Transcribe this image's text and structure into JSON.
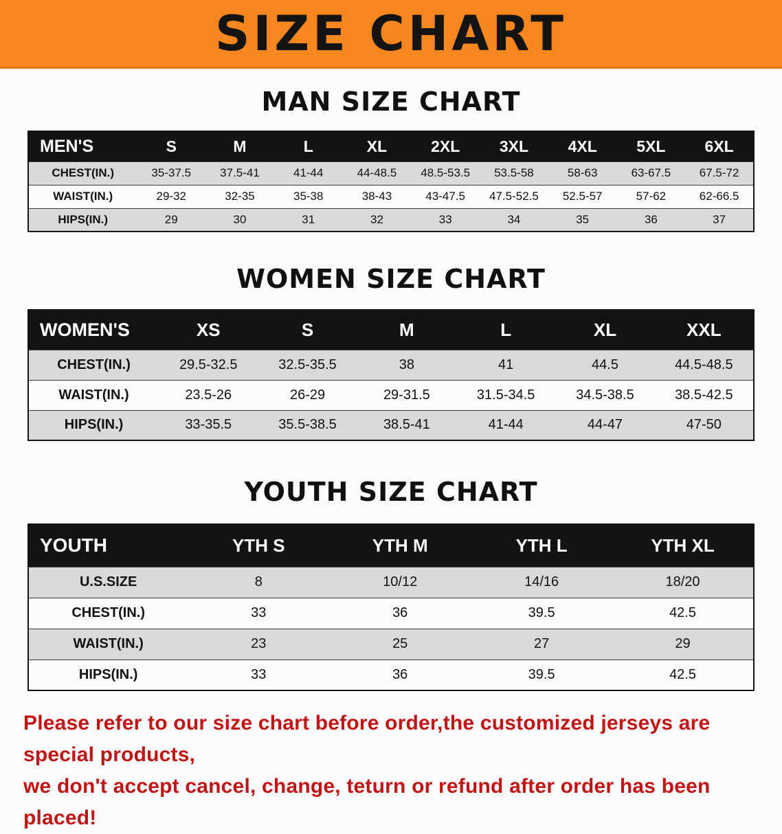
{
  "banner": {
    "title": "SIZE CHART"
  },
  "sections": [
    {
      "heading": "MAN SIZE CHART",
      "table": {
        "header": [
          "MEN'S",
          "S",
          "M",
          "L",
          "XL",
          "2XL",
          "3XL",
          "4XL",
          "5XL",
          "6XL"
        ],
        "rows": [
          {
            "label": "CHEST(IN.)",
            "values": [
              "35-37.5",
              "37.5-41",
              "41-44",
              "44-48.5",
              "48.5-53.5",
              "53.5-58",
              "58-63",
              "63-67.5",
              "67.5-72"
            ]
          },
          {
            "label": "WAIST(IN.)",
            "values": [
              "29-32",
              "32-35",
              "35-38",
              "38-43",
              "43-47.5",
              "47.5-52.5",
              "52.5-57",
              "57-62",
              "62-66.5"
            ]
          },
          {
            "label": "HIPS(IN.)",
            "values": [
              "29",
              "30",
              "31",
              "32",
              "33",
              "34",
              "35",
              "36",
              "37"
            ]
          }
        ]
      }
    },
    {
      "heading": "WOMEN SIZE CHART",
      "table": {
        "header": [
          "WOMEN'S",
          "XS",
          "S",
          "M",
          "L",
          "XL",
          "XXL"
        ],
        "rows": [
          {
            "label": "CHEST(IN.)",
            "values": [
              "29.5-32.5",
              "32.5-35.5",
              "38",
              "41",
              "44.5",
              "44.5-48.5"
            ]
          },
          {
            "label": "WAIST(IN.)",
            "values": [
              "23.5-26",
              "26-29",
              "29-31.5",
              "31.5-34.5",
              "34.5-38.5",
              "38.5-42.5"
            ]
          },
          {
            "label": "HIPS(IN.)",
            "values": [
              "33-35.5",
              "35.5-38.5",
              "38.5-41",
              "41-44",
              "44-47",
              "47-50"
            ]
          }
        ]
      }
    },
    {
      "heading": "YOUTH SIZE CHART",
      "table": {
        "header": [
          "YOUTH",
          "YTH S",
          "YTH M",
          "YTH L",
          "YTH XL"
        ],
        "rows": [
          {
            "label": "U.S.SIZE",
            "values": [
              "8",
              "10/12",
              "14/16",
              "18/20"
            ]
          },
          {
            "label": "CHEST(IN.)",
            "values": [
              "33",
              "36",
              "39.5",
              "42.5"
            ]
          },
          {
            "label": "WAIST(IN.)",
            "values": [
              "23",
              "25",
              "27",
              "29"
            ]
          },
          {
            "label": "HIPS(IN.)",
            "values": [
              "33",
              "36",
              "39.5",
              "42.5"
            ]
          }
        ]
      }
    }
  ],
  "footer": {
    "line1": "Please refer to our size chart before order,the customized jerseys are special products,",
    "line2": "we don't accept cancel, change, teturn or refund after order has been placed!"
  },
  "colors": {
    "banner_orange": "#f6871f",
    "header_black": "#131313",
    "row_gray": "#d9d9d9",
    "note_red": "#c21414"
  }
}
